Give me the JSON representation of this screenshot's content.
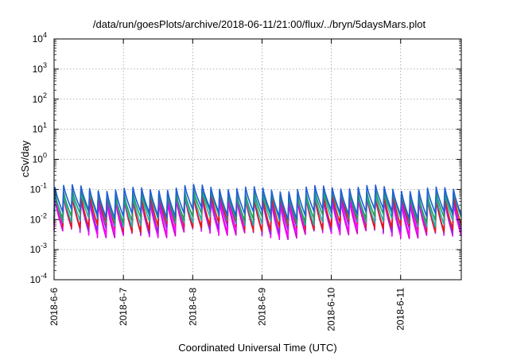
{
  "chart_data": {
    "type": "line",
    "title": "/data/run/goesPlots/archive/2018-06-11/21:00/flux/../bryn/5daysMars.plot",
    "xlabel": "Coordinated Universal Time (UTC)",
    "ylabel": "cSv/day",
    "yscale": "log",
    "ylim": [
      0.0001,
      10000
    ],
    "xlim": [
      "2018-06-06 00:00",
      "2018-06-11 21:00"
    ],
    "y_ticks": [
      {
        "base": "10",
        "exp": "4"
      },
      {
        "base": "10",
        "exp": "3"
      },
      {
        "base": "10",
        "exp": "2"
      },
      {
        "base": "10",
        "exp": "1"
      },
      {
        "base": "10",
        "exp": "0"
      },
      {
        "base": "10",
        "exp": "-1"
      },
      {
        "base": "10",
        "exp": "-2"
      },
      {
        "base": "10",
        "exp": "-3"
      },
      {
        "base": "10",
        "exp": "-4"
      }
    ],
    "x_ticks": [
      "2018-6-6",
      "2018-6-7",
      "2018-6-8",
      "2018-6-9",
      "2018-6-10",
      "2018-6-11"
    ],
    "grid": true,
    "legend": "none",
    "sawtooth_period_hours": 3,
    "series": [
      {
        "color": "#d400d4",
        "peak": 0.045,
        "trough": 0.0035
      },
      {
        "color": "#ff00ff",
        "peak": 0.05,
        "trough": 0.004
      },
      {
        "color": "#8a2be2",
        "peak": 0.06,
        "trough": 0.005
      },
      {
        "color": "#e8190c",
        "peak": 0.07,
        "trough": 0.006
      },
      {
        "color": "#20b2aa",
        "peak": 0.075,
        "trough": 0.009
      },
      {
        "color": "#1f9e5e",
        "peak": 0.08,
        "trough": 0.012
      },
      {
        "color": "#1f5fd6",
        "peak": 0.11,
        "trough": 0.016
      }
    ]
  }
}
